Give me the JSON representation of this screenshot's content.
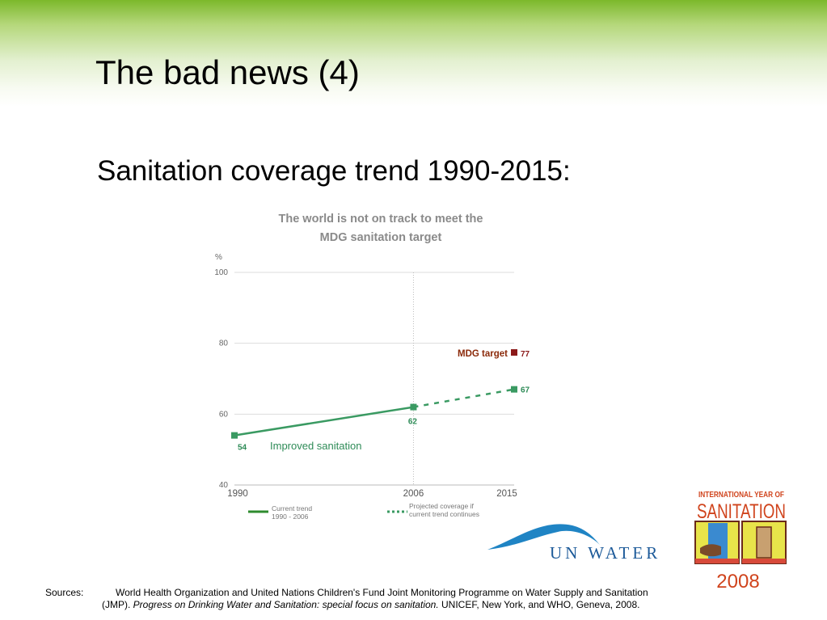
{
  "slide": {
    "title": "The bad news (4)",
    "subtitle": "Sanitation coverage trend 1990-2015:"
  },
  "chart_data": {
    "type": "line",
    "title_lines": [
      "The world is not on track to meet the",
      "MDG sanitation target"
    ],
    "ylabel": "%",
    "ylim": [
      40,
      100
    ],
    "yticks": [
      40,
      60,
      80,
      100
    ],
    "xlim": [
      1990,
      2015
    ],
    "xticks": [
      1990,
      2006,
      2015
    ],
    "grid": true,
    "vertical_reference": 2006,
    "series": [
      {
        "name": "Current trend 1990 - 2006",
        "style": "solid",
        "color": "#3a9a62",
        "x": [
          1990,
          2006
        ],
        "y": [
          54,
          62
        ]
      },
      {
        "name": "Projected coverage if current trend continues",
        "style": "dotted",
        "color": "#3a9a62",
        "x": [
          2006,
          2015
        ],
        "y": [
          62,
          67
        ]
      }
    ],
    "point_labels": [
      "54",
      "62",
      "67"
    ],
    "target": {
      "label": "MDG target",
      "value": 77,
      "value_label": "77",
      "year": 2015,
      "color": "#8b1a1a"
    },
    "annotation": "Improved sanitation",
    "legend": [
      {
        "lines": [
          "Current trend",
          "1990 - 2006"
        ],
        "style": "solid"
      },
      {
        "lines": [
          "Projected coverage if",
          "current trend continues"
        ],
        "style": "dotted"
      }
    ],
    "legend_position": "bottom"
  },
  "logos": {
    "un_water_text": "UN WATER",
    "iys_text_1": "INTERNATIONAL YEAR OF",
    "iys_text_2": "SANITATION",
    "iys_year": "2008"
  },
  "sources": {
    "label": "Sources:",
    "line1": "World Health Organization and United Nations Children's Fund Joint Monitoring Programme on Water Supply and Sanitation",
    "line2_prefix": "(JMP). ",
    "line2_italic": "Progress on Drinking Water and Sanitation: special focus on sanitation.",
    "line2_suffix": " UNICEF, New York, and WHO, Geneva, 2008."
  }
}
